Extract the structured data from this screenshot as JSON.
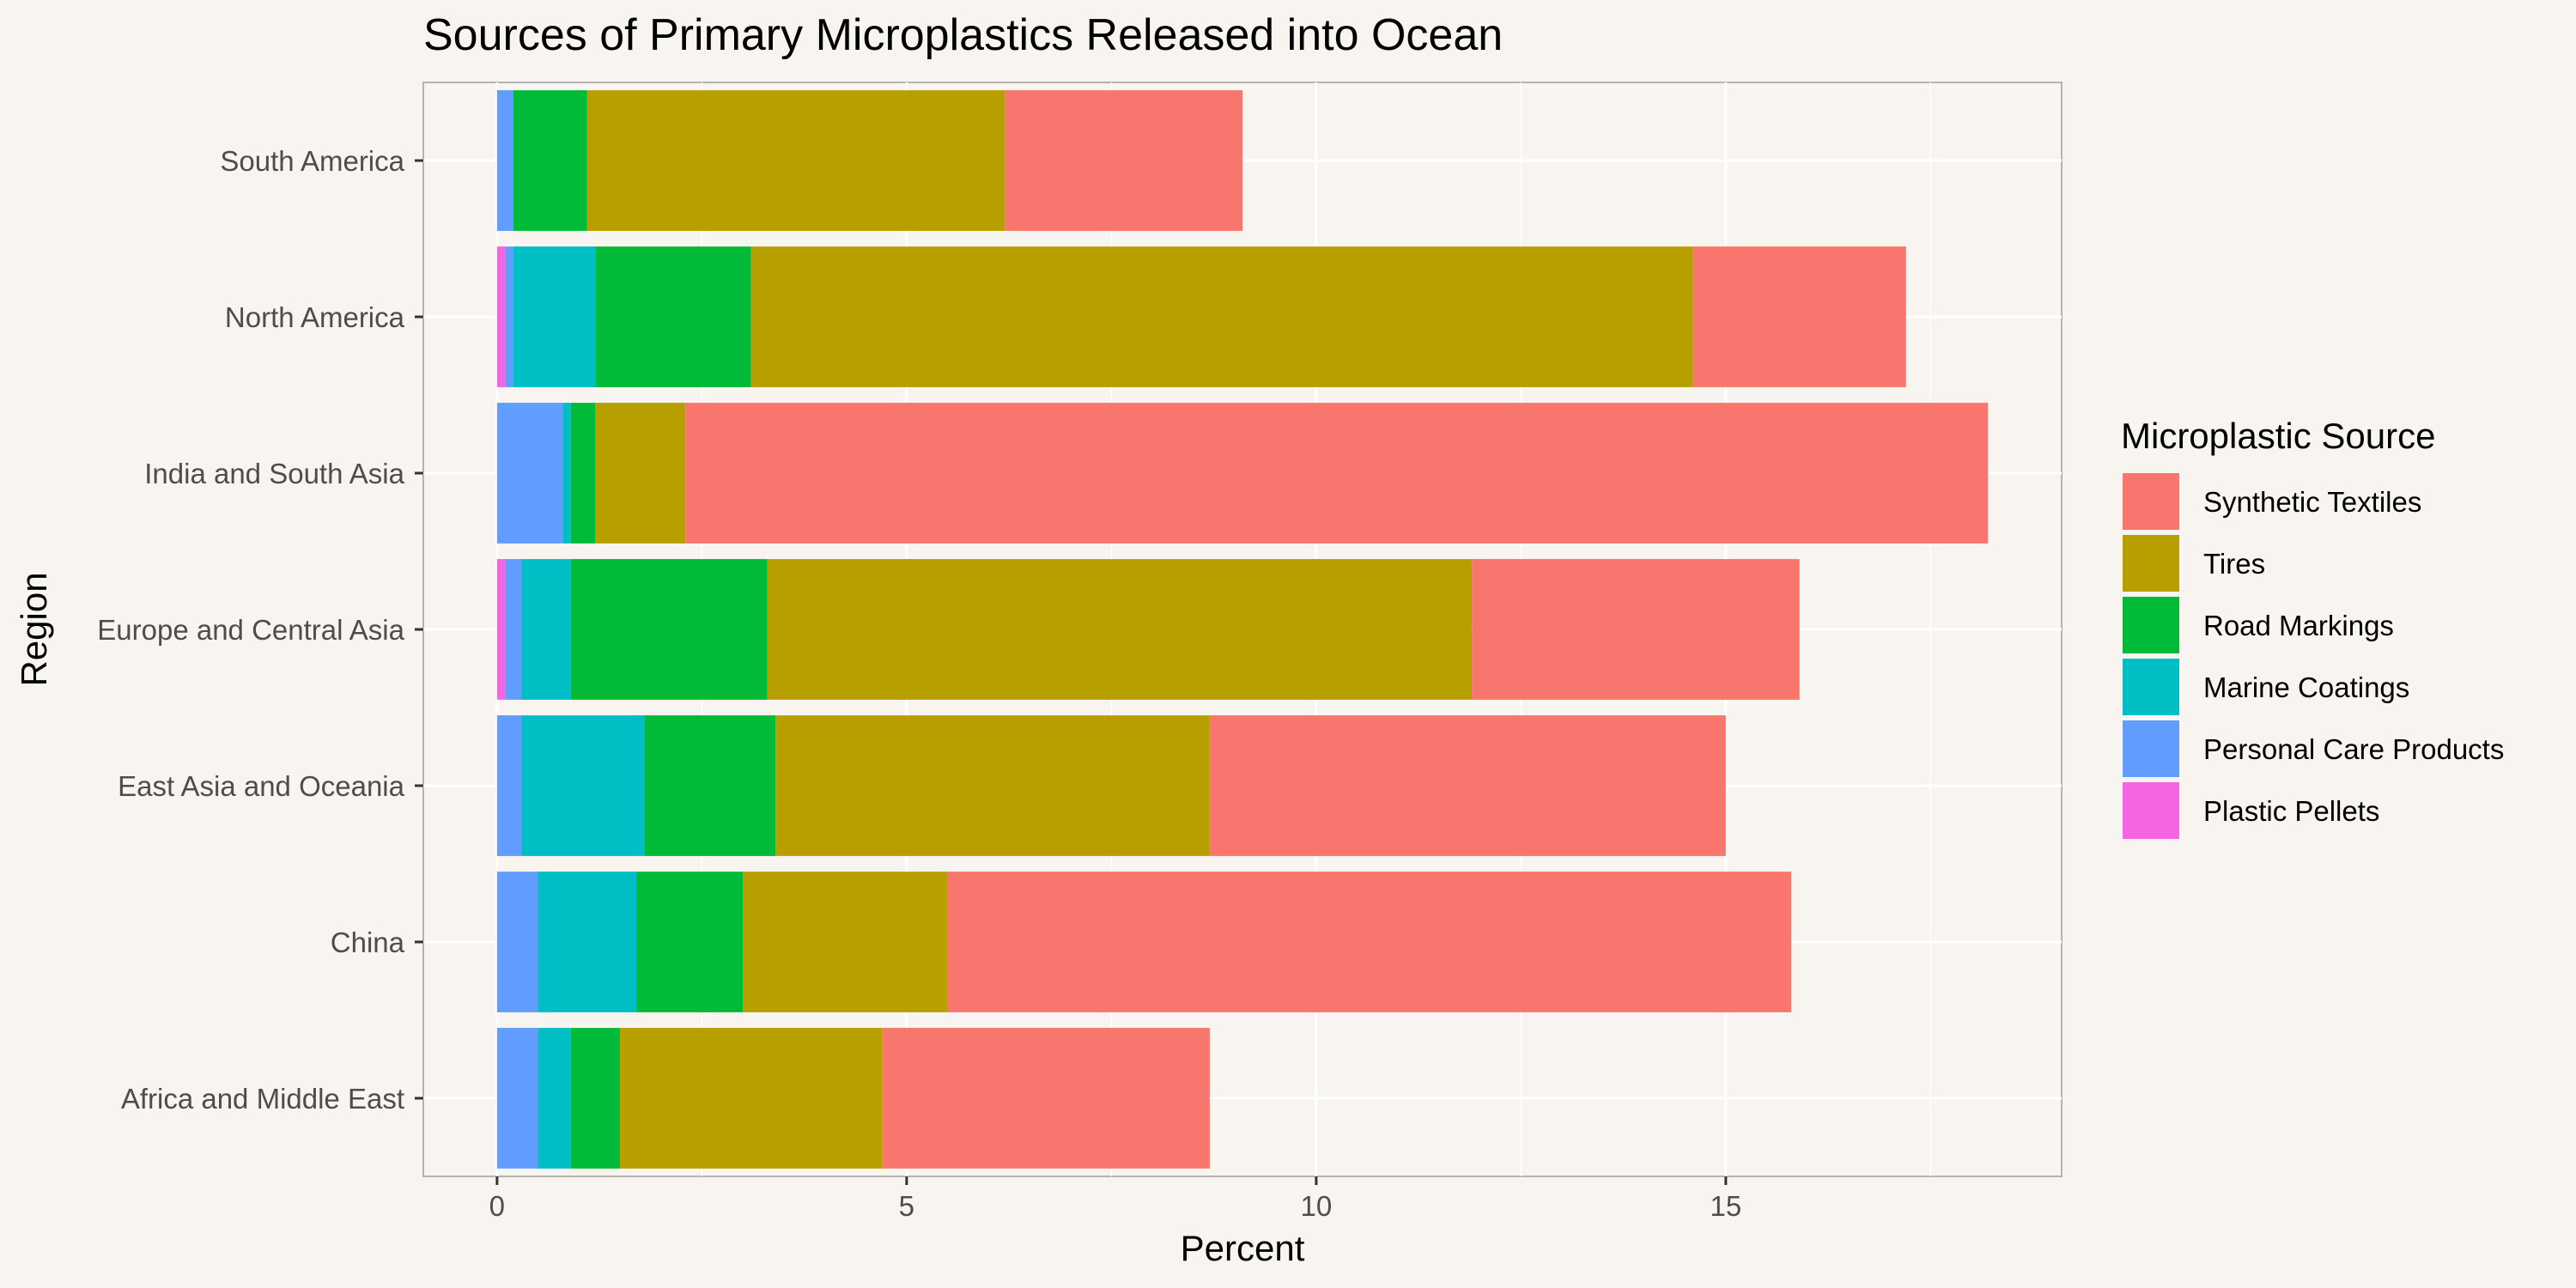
{
  "chart_data": {
    "type": "bar",
    "orientation": "horizontal",
    "stacked": true,
    "title": "Sources of Primary Microplastics Released into Ocean",
    "xlabel": "Percent",
    "ylabel": "Region",
    "xlim": [
      -0.9,
      19.1
    ],
    "xticks": [
      0,
      5,
      10,
      15
    ],
    "grid": true,
    "legend": {
      "title": "Microplastic Source",
      "placement": "right"
    },
    "categories": [
      "South America",
      "North America",
      "India and South Asia",
      "Europe and Central Asia",
      "East Asia and Oceania",
      "China",
      "Africa and Middle East"
    ],
    "series": [
      {
        "name": "Plastic Pellets",
        "color": "#f564e3",
        "values": [
          0.0,
          0.1,
          0.0,
          0.1,
          0.0,
          0.0,
          0.0
        ]
      },
      {
        "name": "Personal Care Products",
        "color": "#619cff",
        "values": [
          0.2,
          0.1,
          0.8,
          0.2,
          0.3,
          0.5,
          0.5
        ]
      },
      {
        "name": "Marine Coatings",
        "color": "#00bfc4",
        "values": [
          0.0,
          1.0,
          0.1,
          0.6,
          1.5,
          1.2,
          0.4
        ]
      },
      {
        "name": "Road Markings",
        "color": "#00ba38",
        "values": [
          0.9,
          1.9,
          0.3,
          2.4,
          1.6,
          1.3,
          0.6
        ]
      },
      {
        "name": "Tires",
        "color": "#b79f00",
        "values": [
          5.1,
          11.5,
          1.1,
          8.6,
          5.3,
          2.5,
          3.2
        ]
      },
      {
        "name": "Synthetic Textiles",
        "color": "#f8766d",
        "values": [
          2.9,
          2.6,
          15.9,
          4.0,
          6.3,
          10.3,
          4.0
        ]
      }
    ],
    "legend_order": [
      "Synthetic Textiles",
      "Tires",
      "Road Markings",
      "Marine Coatings",
      "Personal Care Products",
      "Plastic Pellets"
    ]
  }
}
